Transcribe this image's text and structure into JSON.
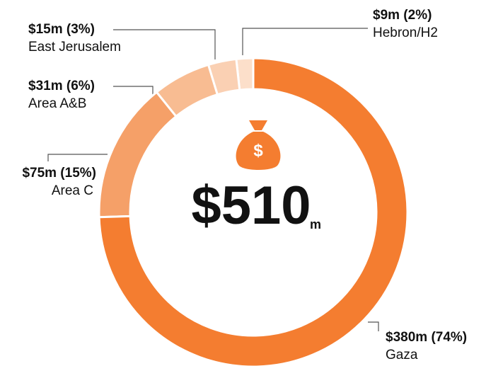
{
  "chart_data": {
    "type": "pie",
    "donut": true,
    "categories": [
      "Gaza",
      "Area C",
      "Area A&B",
      "East Jerusalem",
      "Hebron/H2"
    ],
    "values": [
      380,
      75,
      31,
      15,
      9
    ],
    "value_labels": [
      "$380m (74%)",
      "$75m (15%)",
      "$31m (6%)",
      "$15m (3%)",
      "$9m (2%)"
    ],
    "colors": [
      "#f47d30",
      "#f5a068",
      "#f8bc92",
      "#fad0b3",
      "#fcdfca"
    ],
    "total": "$510",
    "total_unit": "m"
  }
}
